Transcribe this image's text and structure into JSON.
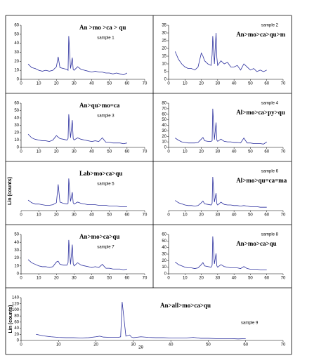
{
  "chart_data": [
    {
      "type": "line",
      "label": "sample 1",
      "annotation": "An >mo >ca > qu",
      "color": "#2b2f9e",
      "x": [
        4,
        6,
        8,
        10,
        12,
        14,
        16,
        18,
        20,
        21,
        22,
        24,
        26,
        26.6,
        27,
        28,
        29,
        29.5,
        30,
        32,
        34,
        36,
        38,
        40,
        42,
        44,
        46,
        48,
        50,
        52,
        54,
        56,
        58,
        60
      ],
      "values": [
        17,
        13,
        12,
        10,
        9,
        10,
        9,
        10,
        14,
        25,
        13,
        12,
        11,
        10,
        48,
        12,
        24,
        11,
        10,
        14,
        11,
        10,
        9,
        8,
        9,
        8,
        8,
        7,
        7,
        6,
        7,
        6,
        5,
        7
      ],
      "xlim": [
        0,
        70
      ],
      "xticks": [
        0,
        10,
        20,
        30,
        40,
        50,
        60,
        70
      ],
      "ylim": [
        0,
        60
      ],
      "yticks": [
        0,
        10,
        20,
        30,
        40,
        50,
        60
      ]
    },
    {
      "type": "line",
      "label": "sample 2",
      "annotation": "An>mo>ca>qu>m",
      "color": "#2b2f9e",
      "x": [
        4,
        6,
        8,
        10,
        12,
        14,
        16,
        18,
        20,
        21,
        22,
        24,
        26,
        26.6,
        27,
        28,
        29,
        29.5,
        30,
        32,
        34,
        36,
        38,
        40,
        42,
        44,
        46,
        48,
        50,
        52,
        54,
        56,
        58,
        60
      ],
      "values": [
        18,
        13,
        10,
        8,
        7,
        7,
        6,
        8,
        17,
        15,
        12,
        10,
        9,
        16,
        28,
        10,
        30,
        14,
        9,
        12,
        10,
        11,
        8,
        8,
        9,
        6,
        10,
        8,
        6,
        7,
        5,
        6,
        5,
        6
      ],
      "xlim": [
        0,
        70
      ],
      "xticks": [
        0,
        10,
        20,
        30,
        40,
        50,
        60,
        70
      ],
      "ylim": [
        0,
        35
      ],
      "yticks": [
        0,
        5,
        10,
        15,
        20,
        25,
        30,
        35
      ]
    },
    {
      "type": "line",
      "label": "sample 3",
      "annotation": "An>qu>mo=ca",
      "color": "#2b2f9e",
      "x": [
        4,
        6,
        8,
        10,
        12,
        14,
        16,
        18,
        20,
        21,
        22,
        24,
        26,
        26.6,
        27,
        28,
        29,
        29.5,
        30,
        32,
        34,
        36,
        38,
        40,
        42,
        44,
        46,
        48,
        50,
        52,
        54,
        56,
        58,
        60
      ],
      "values": [
        18,
        13,
        11,
        10,
        9,
        9,
        8,
        10,
        16,
        14,
        12,
        11,
        10,
        12,
        45,
        13,
        37,
        12,
        10,
        13,
        11,
        10,
        9,
        8,
        9,
        8,
        13,
        7,
        7,
        6,
        6,
        6,
        5,
        6
      ],
      "xlim": [
        0,
        70
      ],
      "xticks": [
        0,
        10,
        20,
        30,
        40,
        50,
        60,
        70
      ],
      "ylim": [
        0,
        60
      ],
      "yticks": [
        0,
        10,
        20,
        30,
        40,
        50,
        60
      ]
    },
    {
      "type": "line",
      "label": "sample 4",
      "annotation": "Al>mo>ca>py>qu",
      "color": "#2b2f9e",
      "x": [
        4,
        6,
        8,
        10,
        12,
        14,
        16,
        18,
        20,
        21,
        22,
        24,
        26,
        26.6,
        27,
        28,
        29,
        29.5,
        30,
        32,
        34,
        36,
        38,
        40,
        42,
        44,
        46,
        48,
        50,
        52,
        54,
        56,
        58,
        60
      ],
      "values": [
        17,
        13,
        10,
        9,
        8,
        8,
        8,
        9,
        15,
        18,
        12,
        11,
        11,
        12,
        70,
        14,
        45,
        13,
        11,
        15,
        11,
        10,
        10,
        9,
        9,
        8,
        17,
        8,
        8,
        7,
        7,
        7,
        6,
        10
      ],
      "xlim": [
        0,
        70
      ],
      "xticks": [
        0,
        10,
        20,
        30,
        40,
        50,
        60,
        70
      ],
      "ylim": [
        0,
        80
      ],
      "yticks": [
        0,
        10,
        20,
        30,
        40,
        50,
        60,
        70,
        80
      ]
    },
    {
      "type": "line",
      "label": "sample 5",
      "annotation": "Lab>mo>ca>qu",
      "y_label": "Lin (counts)",
      "color": "#2b2f9e",
      "x": [
        4,
        6,
        8,
        10,
        12,
        14,
        16,
        18,
        20,
        21,
        22,
        24,
        26,
        26.6,
        27,
        28,
        29,
        29.5,
        30,
        32,
        34,
        36,
        38,
        40,
        42,
        44,
        46,
        48,
        50,
        52,
        54,
        56,
        58,
        60
      ],
      "values": [
        16,
        12,
        10,
        10,
        9,
        8,
        8,
        9,
        12,
        40,
        13,
        11,
        10,
        11,
        49,
        14,
        28,
        12,
        10,
        13,
        11,
        10,
        9,
        9,
        9,
        8,
        8,
        8,
        7,
        7,
        7,
        6,
        6,
        6
      ],
      "xlim": [
        0,
        70
      ],
      "xticks": [
        0,
        10,
        20,
        30,
        40,
        50,
        60,
        70
      ],
      "ylim": [
        0,
        60
      ],
      "yticks": []
    },
    {
      "type": "line",
      "label": "sample 6",
      "annotation": "Al>mo>qu=ca=ma",
      "color": "#2b2f9e",
      "x": [
        4,
        6,
        8,
        10,
        12,
        14,
        16,
        18,
        20,
        21,
        22,
        24,
        26,
        26.6,
        27,
        28,
        29,
        29.5,
        30,
        32,
        34,
        36,
        38,
        40,
        42,
        44,
        46,
        48,
        50,
        52,
        54,
        56,
        58,
        60
      ],
      "values": [
        18,
        14,
        12,
        10,
        9,
        9,
        8,
        9,
        14,
        17,
        12,
        11,
        10,
        13,
        60,
        15,
        31,
        12,
        10,
        15,
        11,
        10,
        10,
        9,
        9,
        8,
        9,
        8,
        7,
        7,
        7,
        6,
        6,
        6
      ],
      "xlim": [
        0,
        70
      ],
      "xticks": [
        0,
        10,
        20,
        30,
        40,
        50,
        60,
        70
      ],
      "ylim": [
        0,
        70
      ],
      "yticks": []
    },
    {
      "type": "line",
      "label": "sample 7",
      "annotation": "An>mo>ca>qu",
      "color": "#2b2f9e",
      "x": [
        4,
        6,
        8,
        10,
        12,
        14,
        16,
        18,
        20,
        21,
        22,
        24,
        26,
        26.6,
        27,
        28,
        29,
        29.5,
        30,
        32,
        34,
        36,
        38,
        40,
        42,
        44,
        46,
        48,
        50,
        52,
        54,
        56,
        58,
        60
      ],
      "values": [
        18,
        14,
        12,
        10,
        9,
        9,
        8,
        9,
        15,
        16,
        12,
        11,
        11,
        14,
        43,
        12,
        37,
        13,
        10,
        14,
        11,
        10,
        9,
        8,
        9,
        8,
        12,
        7,
        7,
        6,
        6,
        6,
        5,
        6
      ],
      "xlim": [
        0,
        70
      ],
      "xticks": [
        0,
        10,
        20,
        30,
        40,
        50,
        60,
        70
      ],
      "ylim": [
        0,
        50
      ],
      "yticks": [
        0,
        10,
        20,
        30,
        40,
        50
      ]
    },
    {
      "type": "line",
      "label": "sample 8",
      "annotation": "An>mo>ca>qu",
      "color": "#2b2f9e",
      "x": [
        4,
        6,
        8,
        10,
        12,
        14,
        16,
        18,
        20,
        21,
        22,
        24,
        26,
        26.6,
        27,
        28,
        29,
        29.5,
        30,
        32,
        34,
        36,
        38,
        40,
        42,
        44,
        46,
        48,
        50,
        52,
        54,
        56,
        58,
        60
      ],
      "values": [
        18,
        14,
        12,
        10,
        9,
        9,
        8,
        9,
        14,
        17,
        12,
        11,
        10,
        13,
        57,
        15,
        31,
        12,
        10,
        14,
        11,
        10,
        9,
        9,
        9,
        8,
        11,
        8,
        7,
        7,
        7,
        6,
        6,
        6
      ],
      "xlim": [
        0,
        70
      ],
      "xticks": [
        0,
        10,
        20,
        30,
        40,
        50,
        60,
        70
      ],
      "ylim": [
        0,
        60
      ],
      "yticks": [
        0,
        10,
        20,
        30,
        40,
        50,
        60
      ]
    },
    {
      "type": "line",
      "label": "sample 9",
      "annotation": "An>all>mo>ca>qu",
      "y_label": "Lin (counts)",
      "x_label": "2θ",
      "color": "#2b2f9e",
      "x": [
        4,
        6,
        8,
        10,
        12,
        14,
        16,
        18,
        20,
        21,
        22,
        24,
        26,
        26.6,
        27,
        28,
        29,
        29.5,
        30,
        32,
        34,
        36,
        38,
        40,
        42,
        44,
        46,
        48,
        50,
        52,
        54,
        56,
        58,
        60
      ],
      "values": [
        20,
        15,
        12,
        10,
        9,
        9,
        8,
        9,
        12,
        14,
        11,
        10,
        10,
        12,
        126,
        14,
        18,
        11,
        9,
        12,
        10,
        9,
        9,
        8,
        8,
        8,
        10,
        7,
        7,
        6,
        6,
        6,
        5,
        6
      ],
      "xlim": [
        0,
        70
      ],
      "xticks": [
        0,
        10,
        20,
        30,
        40,
        50,
        60,
        70
      ],
      "ylim": [
        0,
        140
      ],
      "yticks": [
        0,
        20,
        40,
        60,
        80,
        100,
        120,
        140
      ]
    }
  ]
}
